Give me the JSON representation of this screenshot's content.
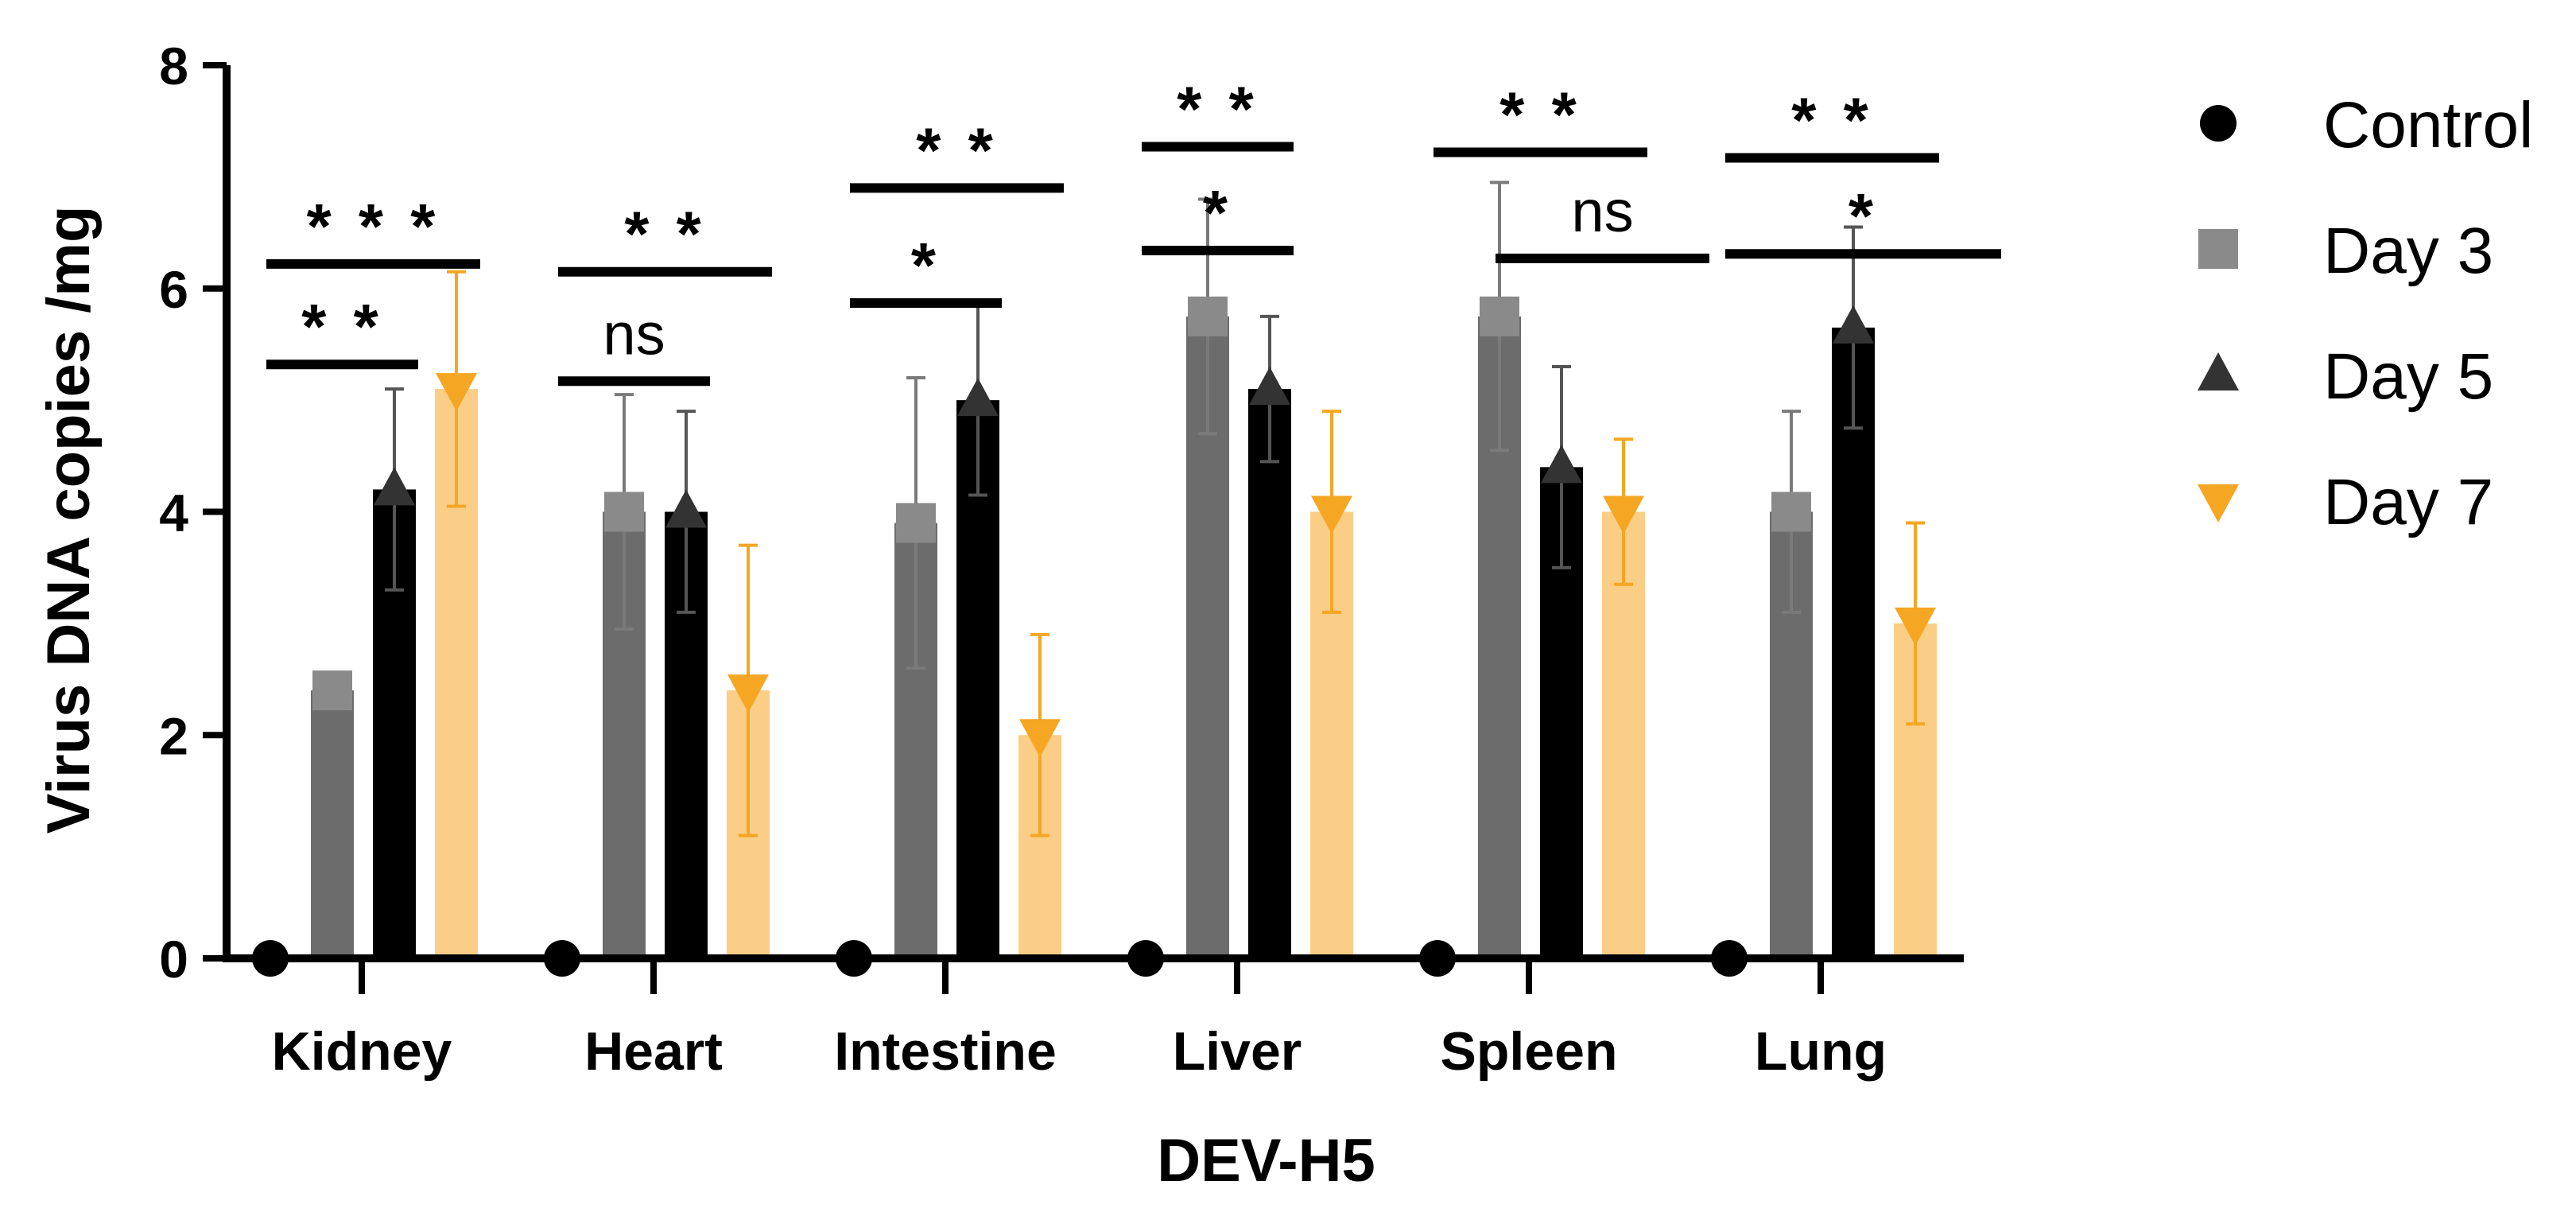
{
  "chart_data": {
    "type": "bar",
    "title": "",
    "xlabel": "DEV-H5",
    "ylabel": "Virus DNA copies /mg",
    "ylim": [
      0,
      8
    ],
    "yticks": [
      "0",
      "2",
      "4",
      "6",
      "8"
    ],
    "categories": [
      "Kidney",
      "Heart",
      "Intestine",
      "Liver",
      "Spleen",
      "Lung"
    ],
    "series": [
      {
        "name": "Control",
        "marker": "circle",
        "color": "#000000",
        "values": [
          0,
          0,
          0,
          0,
          0,
          0
        ],
        "err": [
          0,
          0,
          0,
          0,
          0,
          0
        ]
      },
      {
        "name": "Day 3",
        "marker": "square",
        "color": "#808080",
        "values": [
          2.4,
          4.0,
          3.9,
          5.75,
          5.75,
          4.0
        ],
        "err": [
          0.1,
          1.05,
          1.3,
          1.05,
          1.2,
          0.9
        ]
      },
      {
        "name": "Day 5",
        "marker": "triangle-up",
        "color": "#000000",
        "values": [
          4.2,
          4.0,
          5.0,
          5.1,
          4.4,
          5.65
        ],
        "err": [
          0.9,
          0.9,
          0.85,
          0.65,
          0.9,
          0.9
        ]
      },
      {
        "name": "Day 7",
        "marker": "triangle-down",
        "color": "#F5A623",
        "values": [
          5.1,
          2.4,
          2.0,
          4.0,
          4.0,
          3.0
        ],
        "err": [
          1.05,
          1.3,
          0.9,
          0.9,
          0.65,
          0.9
        ]
      }
    ],
    "annotations": [
      {
        "category": "Kidney",
        "text": "* * *",
        "y": 6.22,
        "from_series": 0,
        "to_series": 3
      },
      {
        "category": "Kidney",
        "text": "* *",
        "y": 5.32,
        "from_series": 0,
        "to_series": 2
      },
      {
        "category": "Heart",
        "text": "* *",
        "y": 6.15,
        "from_series": 0,
        "to_series": 3
      },
      {
        "category": "Heart",
        "text": "ns",
        "y": 5.17,
        "from_series": 0,
        "to_series": 2
      },
      {
        "category": "Intestine",
        "text": "* *",
        "y": 6.9,
        "from_series": 0,
        "to_series": 3
      },
      {
        "category": "Intestine",
        "text": "*",
        "y": 5.87,
        "from_series": 0,
        "to_series": 2
      },
      {
        "category": "Liver",
        "text": "* *",
        "y": 7.27,
        "from_series": 0,
        "to_series": 2
      },
      {
        "category": "Liver",
        "text": "*",
        "y": 6.34,
        "from_series": 0,
        "to_series": 2
      },
      {
        "category": "Spleen",
        "text": "* *",
        "y": 7.22,
        "from_series": 0,
        "to_series": 3
      },
      {
        "category": "Spleen",
        "text": "ns",
        "y": 6.27,
        "from_series": 1,
        "to_series": 4
      },
      {
        "category": "Lung",
        "text": "* *",
        "y": 7.17,
        "from_series": 0,
        "to_series": 3
      },
      {
        "category": "Lung",
        "text": "*",
        "y": 6.31,
        "from_series": 0,
        "to_series": 4
      }
    ],
    "legend_position": "right",
    "grid": false
  }
}
